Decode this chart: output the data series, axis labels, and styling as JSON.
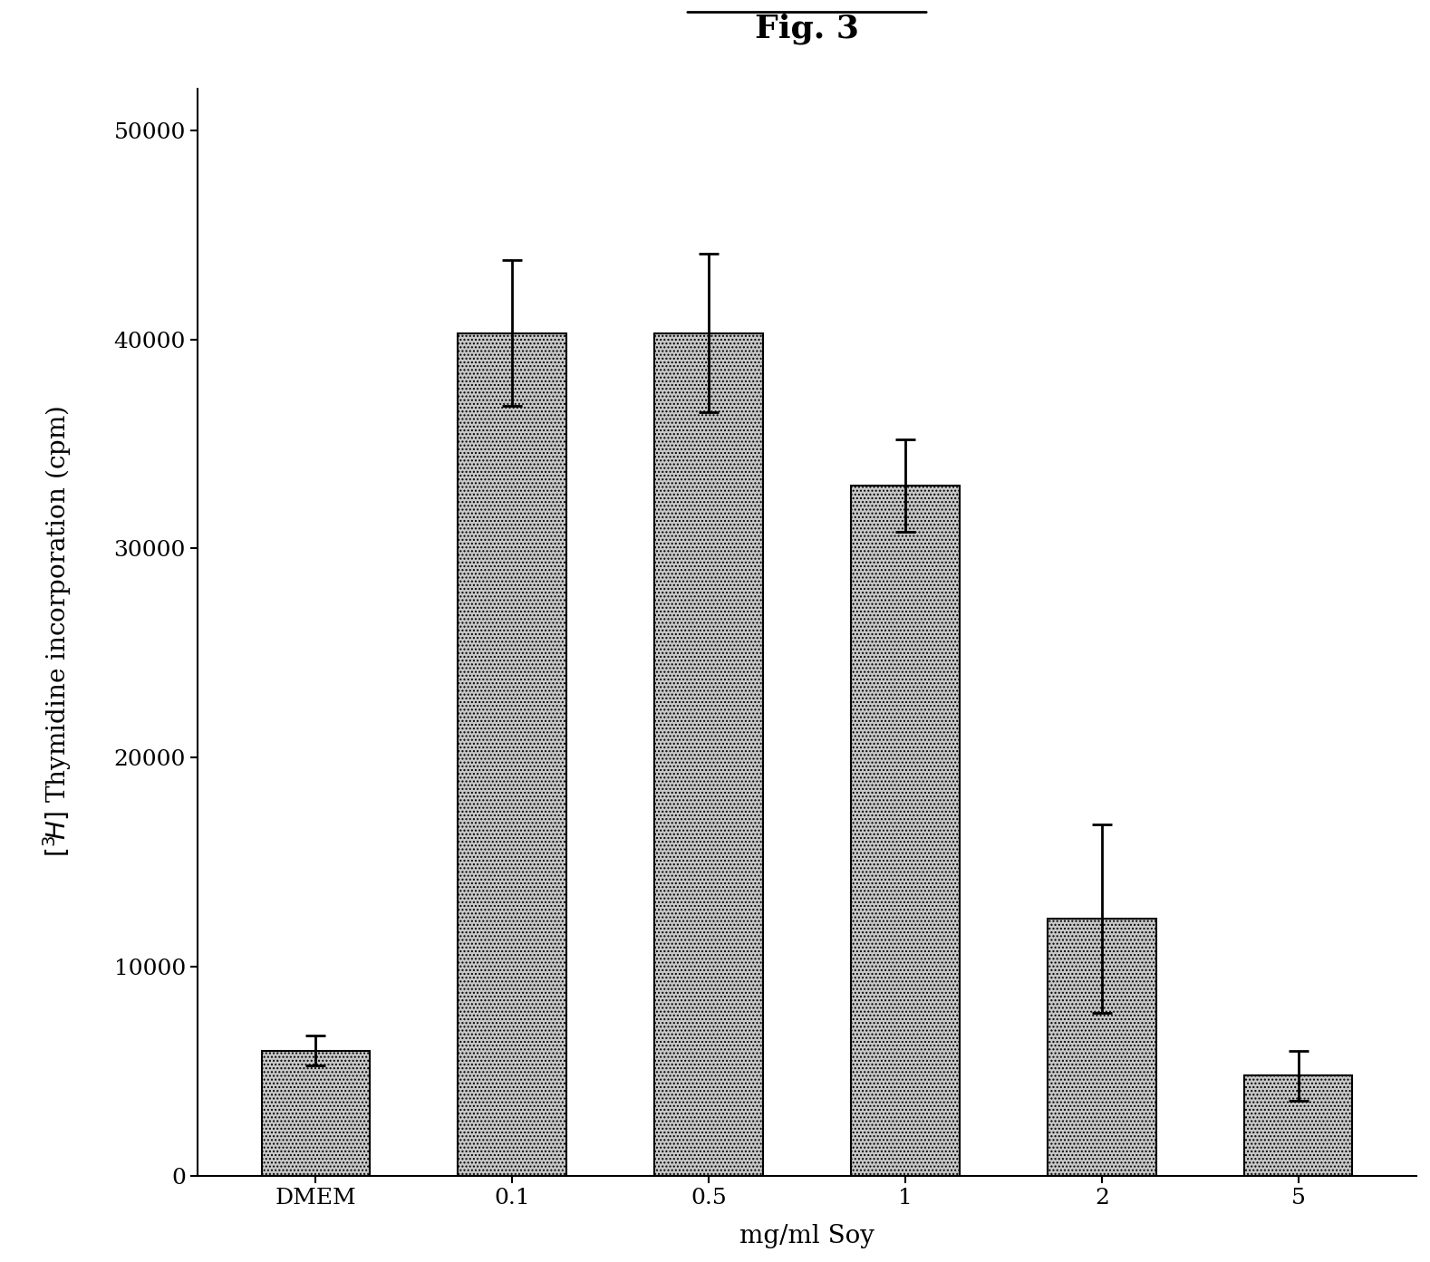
{
  "title": "Fig. 3",
  "categories": [
    "DMEM",
    "0.1",
    "0.5",
    "1",
    "2",
    "5"
  ],
  "values": [
    6000,
    40300,
    40300,
    33000,
    12300,
    4800
  ],
  "errors": [
    700,
    3500,
    3800,
    2200,
    4500,
    1200
  ],
  "xlabel": "mg/ml Soy",
  "ylim": [
    0,
    52000
  ],
  "yticks": [
    0,
    10000,
    20000,
    30000,
    40000,
    50000
  ],
  "bar_color": "#c8c8c8",
  "bar_edgecolor": "#000000",
  "background_color": "#ffffff",
  "title_fontsize": 26,
  "axis_label_fontsize": 20,
  "tick_fontsize": 18,
  "bar_width": 0.55
}
